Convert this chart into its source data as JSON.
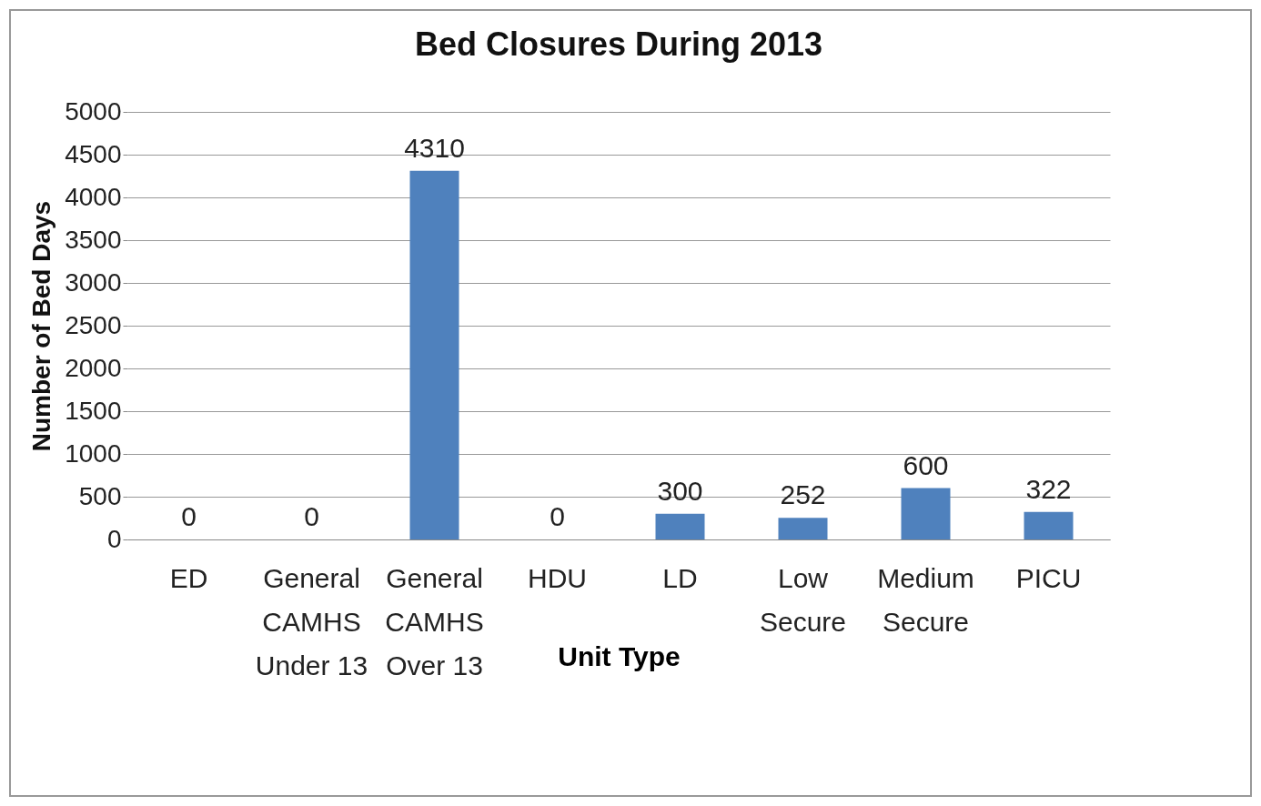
{
  "chart_data": {
    "type": "bar",
    "title": "Bed Closures During 2013",
    "xlabel": "Unit Type",
    "ylabel": "Number of Bed Days",
    "categories": [
      "ED",
      "General CAMHS Under 13",
      "General CAMHS Over 13",
      "HDU",
      "LD",
      "Low Secure",
      "Medium Secure",
      "PICU"
    ],
    "values": [
      0,
      0,
      4310,
      0,
      300,
      252,
      600,
      322
    ],
    "color": "#4f81bd",
    "ylim": [
      0,
      5000
    ],
    "yticks": [
      0,
      500,
      1000,
      1500,
      2000,
      2500,
      3000,
      3500,
      4000,
      4500,
      5000
    ],
    "grid": "y",
    "data_labels": true
  }
}
